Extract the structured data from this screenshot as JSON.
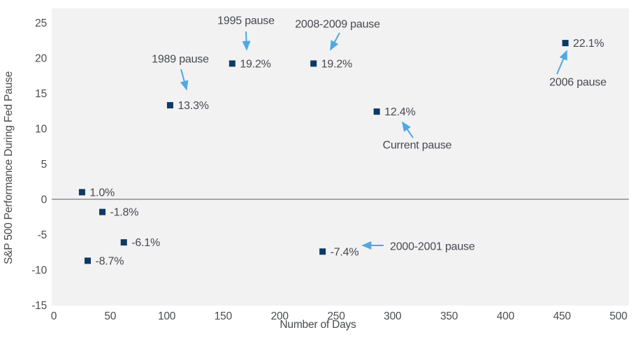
{
  "figure": {
    "background_color": "#ffffff",
    "plot_background_color": "#f2f2f3",
    "zero_line_color": "#8a8c8f",
    "marker_color": "#0d3a63",
    "arrow_color": "#4fa9e0",
    "text_color": "#47494e",
    "tick_text_color": "#4a4c51"
  },
  "chart_data": {
    "type": "scatter",
    "title": "",
    "xlabel": "Number of Days",
    "ylabel": "S&P 500 Performance During Fed Pause",
    "xlim": [
      0,
      500
    ],
    "ylim": [
      -15,
      27
    ],
    "grid": false,
    "legend": "none",
    "x_ticks": [
      0,
      50,
      100,
      150,
      200,
      250,
      300,
      350,
      400,
      450,
      500
    ],
    "y_ticks": [
      25,
      20,
      15,
      10,
      5,
      0,
      -5,
      -10,
      -15
    ],
    "marker_shape": "square",
    "points": [
      {
        "x": 25,
        "y": 1.0,
        "label": "1.0%"
      },
      {
        "x": 30,
        "y": -8.7,
        "label": "-8.7%"
      },
      {
        "x": 43,
        "y": -1.8,
        "label": "-1.8%"
      },
      {
        "x": 62,
        "y": -6.1,
        "label": "-6.1%"
      },
      {
        "x": 103,
        "y": 13.3,
        "label": "13.3%",
        "pause": "1989 pause"
      },
      {
        "x": 158,
        "y": 19.2,
        "label": "19.2%",
        "pause": "1995 pause"
      },
      {
        "x": 230,
        "y": 19.2,
        "label": "19.2%",
        "pause": "2008-2009 pause"
      },
      {
        "x": 238,
        "y": -7.4,
        "label": "-7.4%",
        "pause": "2000-2001 pause"
      },
      {
        "x": 286,
        "y": 12.4,
        "label": "12.4%",
        "pause": "Current pause"
      },
      {
        "x": 453,
        "y": 22.1,
        "label": "22.1%",
        "pause": "2006 pause"
      }
    ],
    "annotations": [
      {
        "text": "1995 pause",
        "tx": 352,
        "ty": 29,
        "anchor": "middle",
        "arrow": [
          352,
          45,
          353,
          71
        ]
      },
      {
        "text": "2008-2009 pause",
        "tx": 483,
        "ty": 34,
        "anchor": "middle",
        "arrow": [
          486,
          47,
          473,
          71
        ]
      },
      {
        "text": "1989 pause",
        "tx": 258,
        "ty": 84,
        "anchor": "middle",
        "arrow": [
          259,
          99,
          267,
          128
        ]
      },
      {
        "text": "2006 pause",
        "tx": 827,
        "ty": 117,
        "anchor": "middle",
        "arrow": [
          797,
          106,
          811,
          73
        ]
      },
      {
        "text": "Current pause",
        "tx": 597,
        "ty": 207,
        "anchor": "middle",
        "arrow": [
          591,
          197,
          576,
          175
        ]
      },
      {
        "text": "2000-2001 pause",
        "tx": 558,
        "ty": 352,
        "anchor": "start",
        "arrow": [
          549,
          351,
          519,
          351
        ]
      }
    ]
  }
}
